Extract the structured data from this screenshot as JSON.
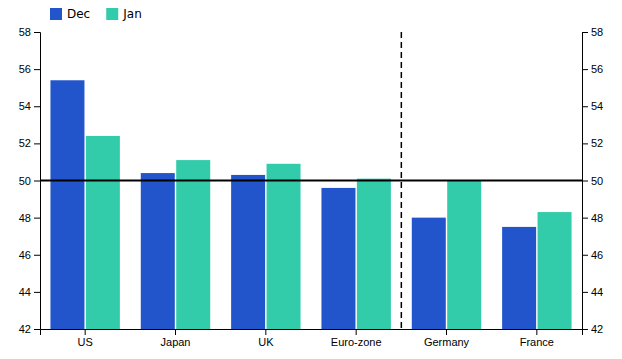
{
  "chart_data": {
    "type": "bar",
    "categories": [
      "US",
      "Japan",
      "UK",
      "Euro-zone",
      "Germany",
      "France"
    ],
    "series": [
      {
        "name": "Dec",
        "color": "#2255cc",
        "values": [
          55.4,
          50.4,
          50.3,
          49.6,
          48.0,
          47.5
        ]
      },
      {
        "name": "Jan",
        "color": "#33ccaa",
        "values": [
          52.4,
          51.1,
          50.9,
          50.1,
          50.0,
          48.3
        ]
      }
    ],
    "ylim": [
      42,
      58
    ],
    "yticks": [
      42,
      44,
      46,
      48,
      50,
      52,
      54,
      56,
      58
    ],
    "y2lim": [
      42,
      58
    ],
    "y2ticks": [
      42,
      44,
      46,
      48,
      50,
      52,
      54,
      56,
      58
    ],
    "reference_line": 50,
    "divider_after": "Euro-zone",
    "grid": false,
    "legend": "upper left"
  }
}
